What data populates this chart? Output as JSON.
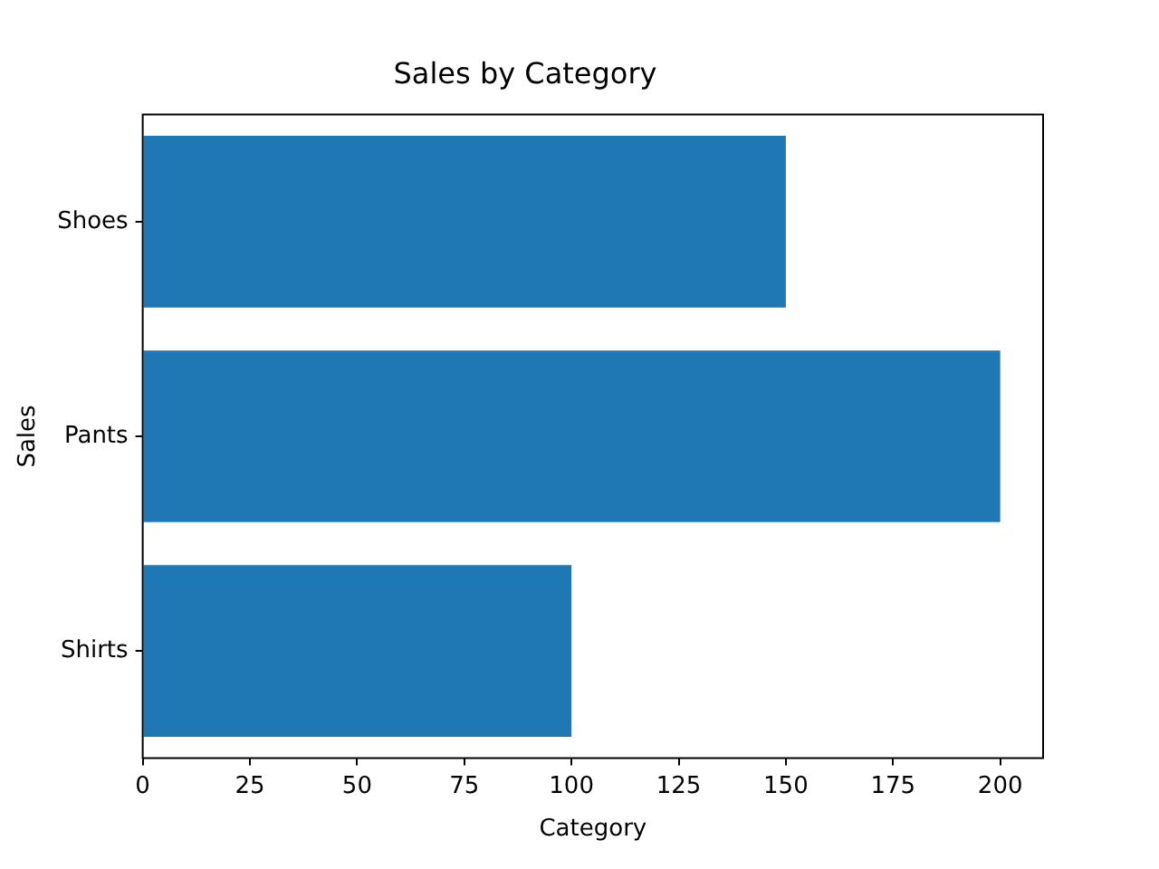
{
  "chart_data": {
    "type": "bar",
    "title": "Sales by Category",
    "xlabel": "Category",
    "ylabel": "Sales",
    "orientation": "horizontal",
    "categories": [
      "Shoes",
      "Pants",
      "Shirts"
    ],
    "values": [
      150,
      200,
      100
    ],
    "color": "#1f77b4",
    "xlim": [
      0,
      210
    ],
    "xticks": [
      0,
      25,
      50,
      75,
      100,
      125,
      150,
      175,
      200
    ],
    "grid": false,
    "legend": false
  }
}
